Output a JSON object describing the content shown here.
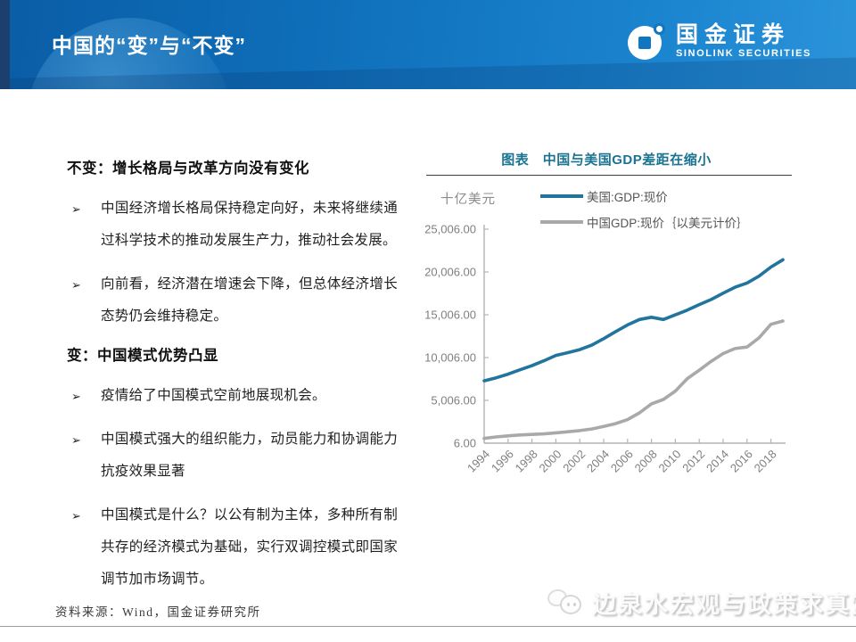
{
  "header": {
    "title": "中国的“变”与“不变”",
    "logo": {
      "cn": "国金证券",
      "en": "SINOLINK SECURITIES"
    }
  },
  "left_panel": {
    "bullet_marker": "➢",
    "sections": [
      {
        "heading": "不变：增长格局与改革方向没有变化",
        "bullets": [
          "中国经济增长格局保持稳定向好，未来将继续通过科学技术的推动发展生产力，推动社会发展。",
          "向前看，经济潜在增速会下降，但总体经济增长态势仍会维持稳定。"
        ]
      },
      {
        "heading": "变：中国模式优势凸显",
        "bullets": [
          "疫情给了中国模式空前地展现机会。",
          "中国模式强大的组织能力，动员能力和协调能力抗疫效果显著",
          "中国模式是什么？以公有制为主体，多种所有制共存的经济模式为基础，实行双调控模式即国家调节加市场调节。"
        ]
      }
    ]
  },
  "chart": {
    "title": "图表　中国与美国GDP差距在缩小",
    "unit": "十亿美元"
  },
  "chart_data": {
    "type": "line",
    "title": "图表 中国与美国GDP差距在缩小",
    "ylabel": "十亿美元",
    "xlabel": "",
    "grid": false,
    "legend_position": "top",
    "ylim": [
      6,
      25006
    ],
    "x": [
      1994,
      1995,
      1996,
      1997,
      1998,
      1999,
      2000,
      2001,
      2002,
      2003,
      2004,
      2005,
      2006,
      2007,
      2008,
      2009,
      2010,
      2011,
      2012,
      2013,
      2014,
      2015,
      2016,
      2017,
      2018,
      2019
    ],
    "x_tick_labels": [
      "1994",
      "1996",
      "1998",
      "2000",
      "2002",
      "2004",
      "2006",
      "2008",
      "2010",
      "2012",
      "2014",
      "2016",
      "2018"
    ],
    "y_ticks": [
      {
        "label": "25,006.00",
        "value": 25006
      },
      {
        "label": "20,006.00",
        "value": 20006
      },
      {
        "label": "15,006.00",
        "value": 15006
      },
      {
        "label": "10,006.00",
        "value": 10006
      },
      {
        "label": "5,006.00",
        "value": 5006
      },
      {
        "label": "6.00",
        "value": 6
      }
    ],
    "series": [
      {
        "name": "美国:GDP:现价",
        "color": "#21759c",
        "values": [
          7287,
          7640,
          8073,
          8578,
          9063,
          9631,
          10252,
          10582,
          10936,
          11458,
          12214,
          13037,
          13815,
          14452,
          14713,
          14449,
          14992,
          15543,
          16197,
          16785,
          17527,
          18225,
          18715,
          19519,
          20580,
          21433
        ]
      },
      {
        "name": "中国GDP:现价｛以美元计价｝",
        "color": "#a9a9a9",
        "values": [
          564,
          734,
          864,
          962,
          1029,
          1094,
          1211,
          1339,
          1471,
          1660,
          1955,
          2286,
          2752,
          3552,
          4598,
          5110,
          6087,
          7552,
          8532,
          9570,
          10476,
          11062,
          11233,
          12310,
          13895,
          14280
        ]
      }
    ]
  },
  "footer": {
    "source": "资料来源：Wind，国金证券研究所",
    "watermark": "边泉水宏观与政策求真堂"
  }
}
